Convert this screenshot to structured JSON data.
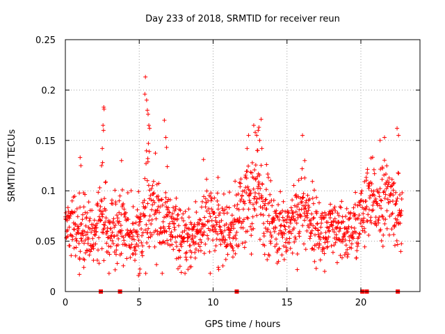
{
  "chart_data": {
    "type": "scatter",
    "title": "Day 233 of 2018, SRMTID for receiver reun",
    "xlabel": "GPS time / hours",
    "ylabel": "SRMTID / TECUs",
    "xlim": [
      0,
      24
    ],
    "ylim": [
      0,
      0.25
    ],
    "grid": true,
    "marker": "+",
    "color": "#ff0000",
    "xticks": [
      0,
      5,
      10,
      15,
      20
    ],
    "xtick_labels": [
      "0",
      "5",
      "10",
      "15",
      "20"
    ],
    "yticks": [
      0,
      0.05,
      0.1,
      0.15,
      0.2,
      0.25
    ],
    "ytick_labels": [
      "0",
      "0.05",
      "0.1",
      "0.15",
      "0.2",
      "0.25"
    ],
    "baseline_markers": [
      2.4,
      3.7,
      11.6,
      20.1,
      20.4,
      22.5
    ],
    "density_profile": [
      [
        0.0,
        0.065,
        0.012
      ],
      [
        0.5,
        0.072,
        0.015
      ],
      [
        1.0,
        0.06,
        0.018
      ],
      [
        1.5,
        0.055,
        0.015
      ],
      [
        2.0,
        0.058,
        0.015
      ],
      [
        2.5,
        0.075,
        0.025
      ],
      [
        3.0,
        0.06,
        0.018
      ],
      [
        3.5,
        0.062,
        0.018
      ],
      [
        4.0,
        0.068,
        0.018
      ],
      [
        4.5,
        0.055,
        0.015
      ],
      [
        5.0,
        0.06,
        0.015
      ],
      [
        5.5,
        0.072,
        0.025
      ],
      [
        6.0,
        0.08,
        0.022
      ],
      [
        6.5,
        0.07,
        0.018
      ],
      [
        7.0,
        0.065,
        0.018
      ],
      [
        7.5,
        0.06,
        0.015
      ],
      [
        8.0,
        0.048,
        0.012
      ],
      [
        8.5,
        0.052,
        0.015
      ],
      [
        9.0,
        0.06,
        0.018
      ],
      [
        9.5,
        0.07,
        0.02
      ],
      [
        10.0,
        0.068,
        0.018
      ],
      [
        10.5,
        0.062,
        0.015
      ],
      [
        11.0,
        0.06,
        0.015
      ],
      [
        11.5,
        0.065,
        0.018
      ],
      [
        12.0,
        0.085,
        0.02
      ],
      [
        12.5,
        0.09,
        0.022
      ],
      [
        13.0,
        0.1,
        0.025
      ],
      [
        13.5,
        0.08,
        0.022
      ],
      [
        14.0,
        0.065,
        0.018
      ],
      [
        14.5,
        0.06,
        0.015
      ],
      [
        15.0,
        0.062,
        0.018
      ],
      [
        15.5,
        0.075,
        0.02
      ],
      [
        16.0,
        0.085,
        0.02
      ],
      [
        16.5,
        0.075,
        0.018
      ],
      [
        17.0,
        0.062,
        0.015
      ],
      [
        17.5,
        0.058,
        0.015
      ],
      [
        18.0,
        0.06,
        0.015
      ],
      [
        18.5,
        0.055,
        0.015
      ],
      [
        19.0,
        0.058,
        0.015
      ],
      [
        19.5,
        0.062,
        0.015
      ],
      [
        20.0,
        0.072,
        0.018
      ],
      [
        20.5,
        0.085,
        0.02
      ],
      [
        21.0,
        0.09,
        0.02
      ],
      [
        21.5,
        0.092,
        0.018
      ],
      [
        22.0,
        0.09,
        0.018
      ],
      [
        22.5,
        0.08,
        0.018
      ],
      [
        22.8,
        0.075,
        0.015
      ]
    ],
    "outliers": [
      [
        2.6,
        0.183
      ],
      [
        2.62,
        0.181
      ],
      [
        2.55,
        0.165
      ],
      [
        2.58,
        0.16
      ],
      [
        2.5,
        0.142
      ],
      [
        2.52,
        0.128
      ],
      [
        2.45,
        0.125
      ],
      [
        5.42,
        0.213
      ],
      [
        5.38,
        0.196
      ],
      [
        5.5,
        0.19
      ],
      [
        5.55,
        0.18
      ],
      [
        5.6,
        0.176
      ],
      [
        5.65,
        0.165
      ],
      [
        5.7,
        0.162
      ],
      [
        5.62,
        0.147
      ],
      [
        5.68,
        0.139
      ],
      [
        5.58,
        0.132
      ],
      [
        6.8,
        0.153
      ],
      [
        6.85,
        0.143
      ],
      [
        6.9,
        0.124
      ],
      [
        6.7,
        0.17
      ],
      [
        12.75,
        0.165
      ],
      [
        12.85,
        0.158
      ],
      [
        12.95,
        0.155
      ],
      [
        13.05,
        0.16
      ],
      [
        13.1,
        0.163
      ],
      [
        13.25,
        0.171
      ],
      [
        13.15,
        0.15
      ],
      [
        13.3,
        0.142
      ],
      [
        12.4,
        0.155
      ],
      [
        12.3,
        0.142
      ],
      [
        16.05,
        0.155
      ],
      [
        16.2,
        0.13
      ],
      [
        22.45,
        0.162
      ],
      [
        22.55,
        0.155
      ],
      [
        21.3,
        0.15
      ],
      [
        21.6,
        0.153
      ],
      [
        1.0,
        0.133
      ],
      [
        1.05,
        0.125
      ],
      [
        3.8,
        0.13
      ],
      [
        9.35,
        0.131
      ],
      [
        0.95,
        0.017
      ],
      [
        4.95,
        0.016
      ],
      [
        7.85,
        0.019
      ],
      [
        10.35,
        0.024
      ],
      [
        17.55,
        0.02
      ],
      [
        1.25,
        0.024
      ],
      [
        8.3,
        0.022
      ]
    ]
  }
}
